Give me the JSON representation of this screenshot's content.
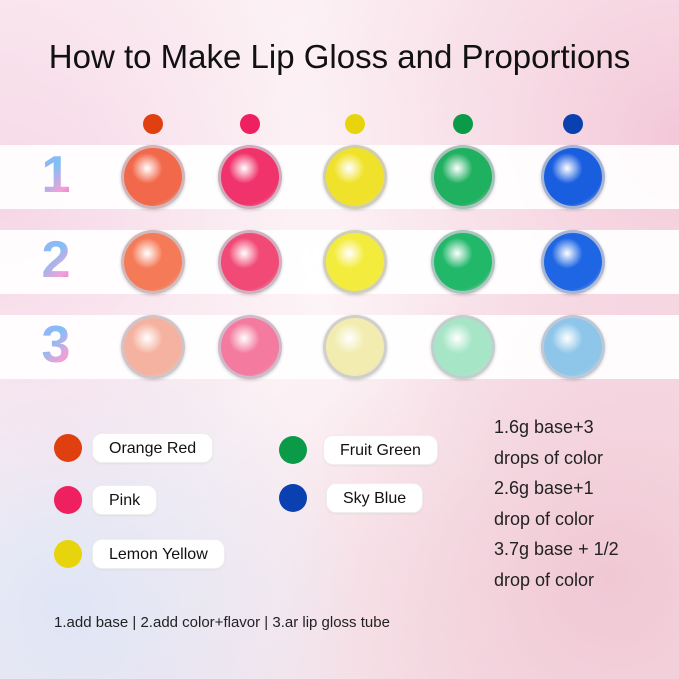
{
  "title": "How to Make Lip Gloss and Proportions",
  "colors": [
    {
      "name": "Orange Red",
      "hex": "#e0400f"
    },
    {
      "name": "Pink",
      "hex": "#ee2060"
    },
    {
      "name": "Lemon Yellow",
      "hex": "#e8d40c"
    },
    {
      "name": "Fruit Green",
      "hex": "#0a9a48"
    },
    {
      "name": "Sky Blue",
      "hex": "#0a40b0"
    }
  ],
  "rows": [
    {
      "number": "1",
      "jars": [
        "#f2684a",
        "#f0336a",
        "#f0e22a",
        "#1fb060",
        "#1a5ee0"
      ]
    },
    {
      "number": "2",
      "jars": [
        "#f57a58",
        "#f24a76",
        "#f4ec3c",
        "#22b86a",
        "#1e66e4"
      ]
    },
    {
      "number": "3",
      "jars": [
        "#f6b2a0",
        "#f47aa0",
        "#f2ecb0",
        "#a6e6c6",
        "#8ec6ea"
      ]
    }
  ],
  "proportions": [
    "1.6g base+3",
    "drops of color",
    "2.6g base+1",
    "drop of color",
    "3.7g base + 1/2",
    "drop of color"
  ],
  "steps": "1.add base  | 2.add color+flavor | 3.ar lip gloss tube"
}
